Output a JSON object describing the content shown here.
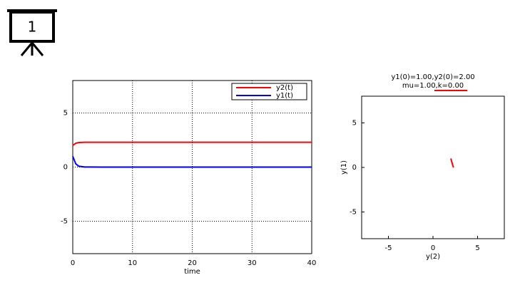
{
  "icon": {
    "label": "1"
  },
  "chart_data": [
    {
      "type": "line",
      "xlabel": "time",
      "x": [
        0,
        0.5,
        1,
        2,
        5,
        10,
        20,
        30,
        40
      ],
      "series": [
        {
          "name": "y2(t)",
          "color": "#ff0000",
          "values": [
            2,
            2.2,
            2.27,
            2.3,
            2.3,
            2.3,
            2.3,
            2.3,
            2.3
          ]
        },
        {
          "name": "y1(t)",
          "color": "#0000ff",
          "values": [
            1,
            0.3,
            0.08,
            0.01,
            0,
            0,
            0,
            0,
            0
          ]
        }
      ],
      "xlim": [
        0,
        40
      ],
      "xticks": [
        0,
        10,
        20,
        30,
        40
      ],
      "ylim": [
        -8,
        8
      ],
      "yticks": [
        -5,
        0,
        5
      ],
      "grid": true,
      "legend": "top-right"
    },
    {
      "type": "line",
      "title": "y1(0)=1.00,y2(0)=2.00",
      "subtitle": "mu=1.00,k=0.00",
      "xlabel": "y(2)",
      "ylabel": "y(1)",
      "x": [
        2,
        2.2,
        2.27,
        2.3
      ],
      "series": [
        {
          "color": "#ff0000",
          "values": [
            1,
            0.3,
            0.08,
            0
          ]
        }
      ],
      "xlim": [
        -8,
        8
      ],
      "xticks": [
        -5,
        0,
        5
      ],
      "ylim": [
        -8,
        8
      ],
      "yticks": [
        -5,
        0,
        5
      ],
      "grid": false
    }
  ]
}
